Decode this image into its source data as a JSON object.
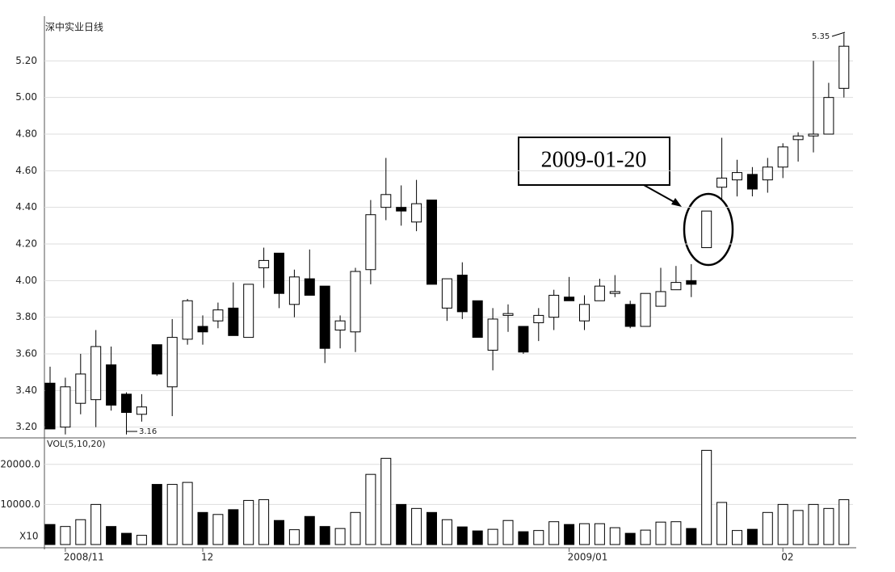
{
  "chart_data": {
    "type": "candlestick",
    "title": "深中实业日线",
    "annotation": "2009-01-20",
    "max_label": "5.35",
    "min_label": "3.16",
    "categories": [
      null,
      "2008/11",
      null,
      null,
      null,
      null,
      null,
      null,
      null,
      null,
      "12",
      null,
      null,
      null,
      null,
      null,
      null,
      null,
      null,
      null,
      null,
      null,
      null,
      null,
      null,
      null,
      null,
      null,
      null,
      null,
      null,
      null,
      null,
      null,
      "2009/01",
      null,
      null,
      null,
      null,
      null,
      null,
      null,
      null,
      null,
      null,
      null,
      null,
      null,
      "02",
      null,
      null,
      null,
      null
    ],
    "open": [
      3.44,
      3.2,
      3.33,
      3.35,
      3.54,
      3.38,
      3.27,
      3.65,
      3.42,
      3.68,
      3.75,
      3.78,
      3.85,
      3.69,
      4.07,
      4.15,
      3.87,
      4.01,
      3.97,
      3.73,
      3.72,
      4.06,
      4.4,
      4.4,
      4.32,
      4.44,
      3.85,
      4.03,
      3.89,
      3.62,
      3.81,
      3.75,
      3.77,
      3.8,
      3.91,
      3.78,
      3.89,
      3.93,
      3.87,
      3.75,
      3.86,
      3.95,
      4.0,
      4.18,
      4.51,
      4.55,
      4.58,
      4.55,
      4.62,
      4.77,
      4.79,
      4.8,
      5.05
    ],
    "close": [
      3.19,
      3.42,
      3.49,
      3.64,
      3.32,
      3.28,
      3.31,
      3.49,
      3.69,
      3.89,
      3.72,
      3.84,
      3.7,
      3.98,
      4.11,
      3.93,
      4.02,
      3.92,
      3.63,
      3.78,
      4.05,
      4.36,
      4.47,
      4.38,
      4.42,
      3.98,
      4.01,
      3.83,
      3.69,
      3.79,
      3.82,
      3.61,
      3.81,
      3.92,
      3.89,
      3.87,
      3.97,
      3.94,
      3.75,
      3.93,
      3.94,
      3.99,
      3.98,
      4.38,
      4.56,
      4.59,
      4.5,
      4.62,
      4.73,
      4.79,
      4.8,
      5.0,
      5.28
    ],
    "high": [
      3.53,
      3.47,
      3.6,
      3.73,
      3.64,
      3.39,
      3.38,
      3.65,
      3.79,
      3.9,
      3.81,
      3.88,
      3.99,
      3.98,
      4.18,
      4.15,
      4.06,
      4.17,
      3.97,
      3.81,
      4.07,
      4.44,
      4.67,
      4.52,
      4.55,
      4.44,
      4.01,
      4.1,
      3.89,
      3.85,
      3.87,
      3.75,
      3.85,
      3.95,
      4.02,
      3.92,
      4.01,
      4.03,
      3.89,
      3.93,
      4.07,
      4.08,
      4.09,
      4.38,
      4.78,
      4.66,
      4.62,
      4.67,
      4.75,
      4.81,
      5.2,
      5.08,
      5.35
    ],
    "low": [
      3.19,
      3.16,
      3.27,
      3.2,
      3.29,
      3.16,
      3.23,
      3.48,
      3.26,
      3.65,
      3.65,
      3.74,
      3.7,
      3.69,
      3.96,
      3.85,
      3.8,
      3.92,
      3.55,
      3.63,
      3.61,
      3.98,
      4.33,
      4.3,
      4.27,
      3.98,
      3.78,
      3.79,
      3.69,
      3.51,
      3.72,
      3.6,
      3.67,
      3.73,
      3.89,
      3.73,
      3.89,
      3.91,
      3.74,
      3.75,
      3.86,
      3.95,
      3.91,
      4.18,
      4.44,
      4.46,
      4.46,
      4.48,
      4.56,
      4.65,
      4.7,
      4.8,
      5.0
    ],
    "up_color": "#ffffff",
    "down_color": "#000000",
    "ylim": [
      3.15,
      5.4
    ],
    "yticks": [
      {
        "value": 3.2,
        "label": "3.20"
      },
      {
        "value": 3.4,
        "label": "3.40"
      },
      {
        "value": 3.6,
        "label": "3.60"
      },
      {
        "value": 3.8,
        "label": "3.80"
      },
      {
        "value": 4.0,
        "label": "4.00"
      },
      {
        "value": 4.2,
        "label": "4.20"
      },
      {
        "value": 4.4,
        "label": "4.40"
      },
      {
        "value": 4.6,
        "label": "4.60"
      },
      {
        "value": 4.8,
        "label": "4.80"
      },
      {
        "value": 5.0,
        "label": "5.00"
      },
      {
        "value": 5.2,
        "label": "5.20"
      }
    ],
    "grid": true,
    "volume": {
      "header": "VOL(5,10,20)",
      "unit_label": "X10",
      "values": [
        5000,
        4500,
        6200,
        10000,
        4500,
        2800,
        2300,
        15000,
        15000,
        15500,
        8000,
        7500,
        8700,
        11000,
        11200,
        6000,
        3700,
        7000,
        4500,
        4000,
        8000,
        17500,
        21500,
        10000,
        9000,
        8000,
        6200,
        4400,
        3400,
        3800,
        6000,
        3200,
        3500,
        5700,
        5000,
        5200,
        5200,
        4200,
        2800,
        3600,
        5600,
        5700,
        4000,
        23500,
        10500,
        3500,
        3800,
        8000,
        10000,
        8500,
        10000,
        9000,
        11200
      ],
      "ylim": [
        0,
        26000
      ],
      "yticks": [
        {
          "value": 10000,
          "label": "10000.0"
        },
        {
          "value": 20000,
          "label": "20000.0"
        }
      ]
    }
  }
}
